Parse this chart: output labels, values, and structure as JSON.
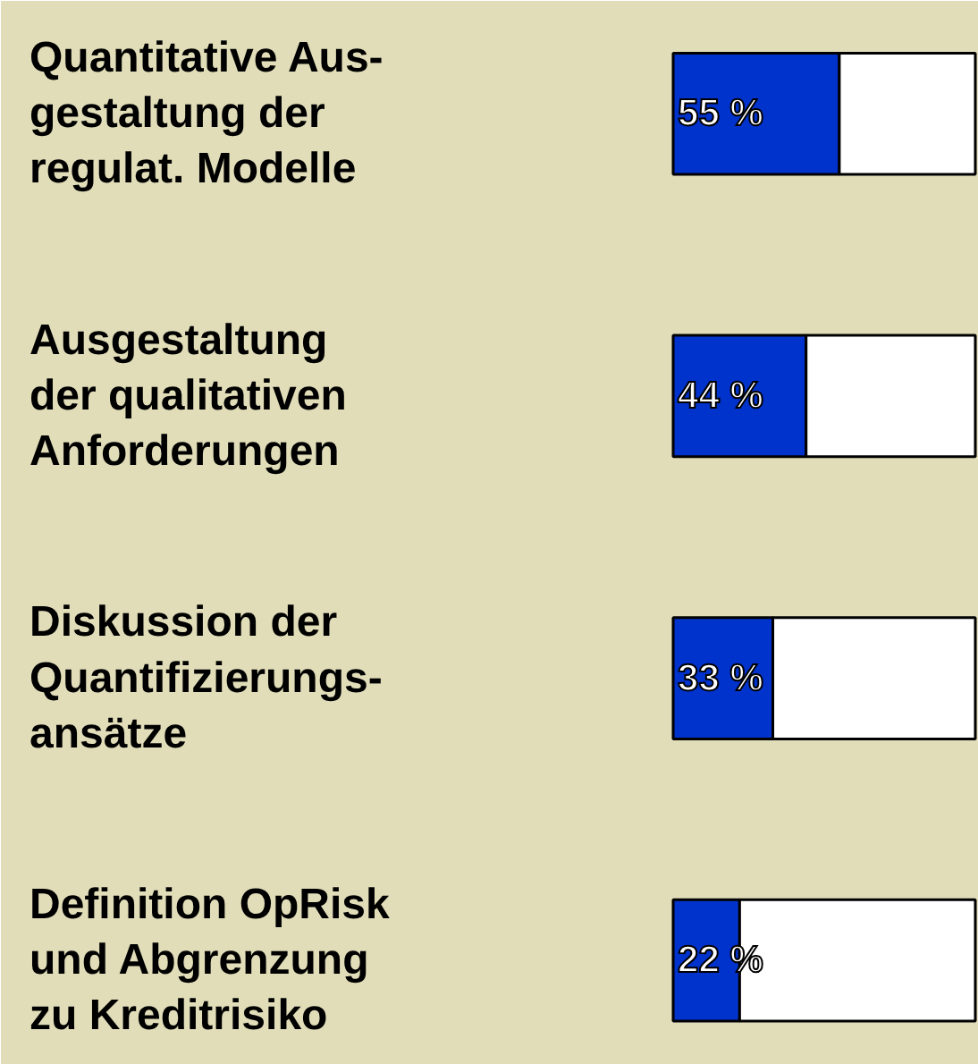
{
  "chart_data": {
    "type": "bar",
    "orientation": "horizontal",
    "stacked": true,
    "categories": [
      "Quantitative Aus-\ngestaltung der\nregulat. Modelle",
      "Ausgestaltung\nder qualitativen\nAnforderungen",
      "Diskussion der\nQuantifizierungs-\nansätze",
      "Definition OpRisk\nund Abgrenzung\nzu Kreditrisiko"
    ],
    "xlim": [
      0,
      100
    ],
    "series": [
      {
        "color": "#0033cc",
        "values": [
          55,
          44,
          33,
          22
        ],
        "value_labels": [
          "55 %",
          "44 %",
          "33 %",
          "22 %"
        ]
      },
      {
        "color": "#ffffff",
        "values": [
          45,
          56,
          67,
          78
        ]
      }
    ]
  }
}
